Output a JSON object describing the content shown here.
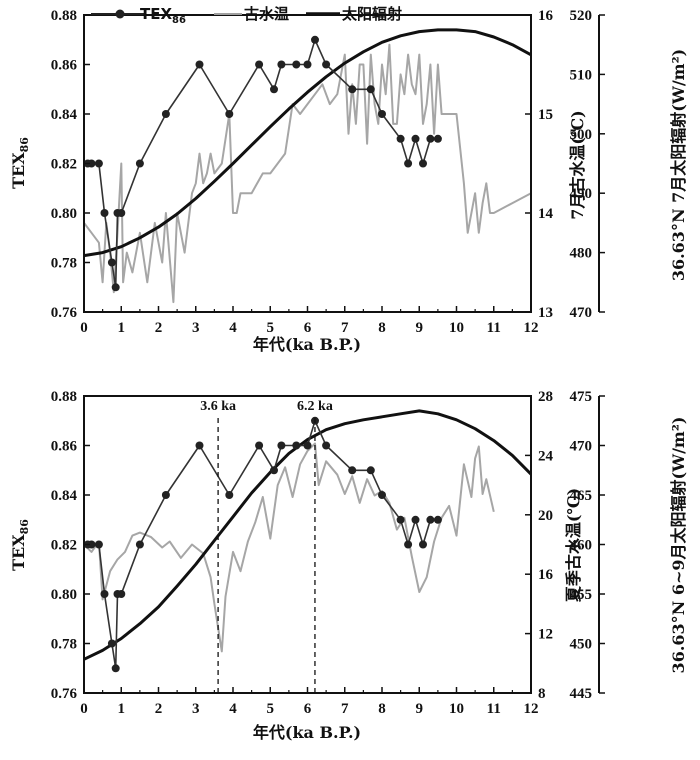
{
  "legend": {
    "tex86": "TEX",
    "tex86_sub": "86",
    "paleo_temp": "古水温",
    "solar": "太阳辐射"
  },
  "chart_data": [
    {
      "type": "line",
      "panel": "top",
      "xlabel": "年代(ka B.P.)",
      "ylabel_left": "TEX",
      "ylabel_left_sub": "86",
      "ylabel_right1": "7月古水温(℃)",
      "ylabel_right2": "36.63°N 7月太阳辐射(W/m²)",
      "xlim": [
        0,
        12
      ],
      "xticks": [
        "0",
        "1",
        "2",
        "3",
        "4",
        "5",
        "6",
        "7",
        "8",
        "9",
        "10",
        "11",
        "12"
      ],
      "ylim_left": [
        0.76,
        0.88
      ],
      "yticks_left": [
        "0.76",
        "0.78",
        "0.80",
        "0.82",
        "0.84",
        "0.86",
        "0.88"
      ],
      "ylim_right1": [
        13,
        16
      ],
      "yticks_right1": [
        "13",
        "14",
        "15",
        "16"
      ],
      "ylim_right2": [
        470,
        520
      ],
      "yticks_right2": [
        "470",
        "480",
        "490",
        "500",
        "510",
        "520"
      ],
      "series": [
        {
          "name": "TEX86",
          "axis": "left",
          "x": [
            0.1,
            0.2,
            0.4,
            0.55,
            0.75,
            0.85,
            0.9,
            1.0,
            1.5,
            2.2,
            3.1,
            3.9,
            4.7,
            5.1,
            5.3,
            5.7,
            6.0,
            6.2,
            6.5,
            7.2,
            7.7,
            8.0,
            8.5,
            8.7,
            8.9,
            9.1,
            9.3,
            9.5
          ],
          "values": [
            0.82,
            0.82,
            0.82,
            0.8,
            0.78,
            0.77,
            0.8,
            0.8,
            0.82,
            0.84,
            0.86,
            0.84,
            0.86,
            0.85,
            0.86,
            0.86,
            0.86,
            0.87,
            0.86,
            0.85,
            0.85,
            0.84,
            0.83,
            0.82,
            0.83,
            0.82,
            0.83,
            0.83
          ]
        },
        {
          "name": "古水温",
          "axis": "right1",
          "x": [
            0.0,
            0.2,
            0.4,
            0.5,
            0.6,
            0.7,
            0.8,
            0.9,
            1.0,
            1.05,
            1.15,
            1.3,
            1.5,
            1.7,
            1.9,
            2.1,
            2.2,
            2.4,
            2.5,
            2.7,
            2.9,
            3.0,
            3.1,
            3.2,
            3.3,
            3.4,
            3.5,
            3.7,
            3.9,
            4.0,
            4.1,
            4.2,
            4.5,
            4.8,
            5.0,
            5.2,
            5.4,
            5.6,
            5.8,
            6.0,
            6.2,
            6.4,
            6.6,
            6.8,
            7.0,
            7.1,
            7.2,
            7.3,
            7.4,
            7.5,
            7.6,
            7.7,
            7.8,
            7.9,
            8.0,
            8.1,
            8.2,
            8.3,
            8.4,
            8.5,
            8.6,
            8.7,
            8.8,
            8.9,
            9.0,
            9.1,
            9.2,
            9.3,
            9.4,
            9.5,
            9.6,
            10.0,
            10.2,
            10.3,
            10.5,
            10.6,
            10.7,
            10.8,
            10.9,
            11.0,
            11.5,
            12.0
          ],
          "values": [
            13.9,
            13.8,
            13.7,
            13.3,
            13.9,
            13.6,
            13.2,
            13.8,
            14.5,
            13.3,
            13.6,
            13.4,
            13.8,
            13.3,
            13.9,
            13.5,
            14.0,
            13.1,
            14.0,
            13.6,
            14.2,
            14.3,
            14.6,
            14.3,
            14.4,
            14.6,
            14.4,
            14.5,
            15.0,
            14.0,
            14.0,
            14.2,
            14.2,
            14.4,
            14.4,
            14.5,
            14.6,
            15.1,
            15.0,
            15.1,
            15.2,
            15.3,
            15.1,
            15.2,
            15.6,
            14.8,
            15.3,
            14.9,
            15.5,
            15.5,
            14.7,
            15.6,
            15.1,
            14.9,
            15.5,
            15.2,
            15.7,
            14.9,
            14.9,
            15.4,
            15.2,
            15.6,
            15.3,
            15.2,
            15.6,
            14.9,
            15.1,
            15.5,
            14.8,
            15.5,
            15.0,
            15.0,
            14.3,
            13.8,
            14.2,
            13.8,
            14.1,
            14.3,
            14.0,
            14.0,
            14.1,
            14.2
          ]
        },
        {
          "name": "太阳辐射",
          "axis": "right2",
          "x": [
            0,
            0.5,
            1,
            1.5,
            2,
            2.5,
            3,
            3.5,
            4,
            4.5,
            5,
            5.5,
            6,
            6.5,
            7,
            7.5,
            8,
            8.5,
            9,
            9.5,
            10,
            10.5,
            11,
            11.5,
            12
          ],
          "values": [
            479.5,
            480.0,
            481.0,
            482.5,
            484.3,
            486.5,
            489.1,
            492.0,
            495.0,
            498.1,
            501.2,
            504.2,
            507.0,
            509.6,
            511.9,
            513.8,
            515.4,
            516.5,
            517.2,
            517.5,
            517.5,
            517.2,
            516.3,
            515.0,
            513.3
          ]
        }
      ]
    },
    {
      "type": "line",
      "panel": "bottom",
      "xlabel": "年代(ka B.P.)",
      "ylabel_left": "TEX",
      "ylabel_left_sub": "86",
      "ylabel_right1": "夏季古水温(℃)",
      "ylabel_right2": "36.63°N 6~9月太阳辐射(W/m²)",
      "xlim": [
        0,
        12
      ],
      "xticks": [
        "0",
        "1",
        "2",
        "3",
        "4",
        "5",
        "6",
        "7",
        "8",
        "9",
        "10",
        "11",
        "12"
      ],
      "ylim_left": [
        0.76,
        0.88
      ],
      "yticks_left": [
        "0.76",
        "0.78",
        "0.80",
        "0.82",
        "0.84",
        "0.86",
        "0.88"
      ],
      "ylim_right1": [
        8,
        28
      ],
      "yticks_right1": [
        "8",
        "12",
        "16",
        "20",
        "24",
        "28"
      ],
      "ylim_right2": [
        445,
        475
      ],
      "yticks_right2": [
        "445",
        "450",
        "455",
        "460",
        "465",
        "470",
        "475"
      ],
      "annotations": [
        {
          "x": 3.6,
          "label": "3.6 ka"
        },
        {
          "x": 6.2,
          "label": "6.2 ka"
        }
      ],
      "series": [
        {
          "name": "TEX86",
          "axis": "left",
          "x": [
            0.1,
            0.2,
            0.4,
            0.55,
            0.75,
            0.85,
            0.9,
            1.0,
            1.5,
            2.2,
            3.1,
            3.9,
            4.7,
            5.1,
            5.3,
            5.7,
            6.0,
            6.2,
            6.5,
            7.2,
            7.7,
            8.0,
            8.5,
            8.7,
            8.9,
            9.1,
            9.3,
            9.5
          ],
          "values": [
            0.82,
            0.82,
            0.82,
            0.8,
            0.78,
            0.77,
            0.8,
            0.8,
            0.82,
            0.84,
            0.86,
            0.84,
            0.86,
            0.85,
            0.86,
            0.86,
            0.86,
            0.87,
            0.86,
            0.85,
            0.85,
            0.84,
            0.83,
            0.82,
            0.83,
            0.82,
            0.83,
            0.83
          ]
        },
        {
          "name": "夏季古水温",
          "axis": "right1",
          "x": [
            0.0,
            0.2,
            0.4,
            0.5,
            0.7,
            0.9,
            1.1,
            1.3,
            1.5,
            1.8,
            2.1,
            2.3,
            2.6,
            2.9,
            3.2,
            3.4,
            3.5,
            3.6,
            3.7,
            3.8,
            4.0,
            4.2,
            4.4,
            4.6,
            4.8,
            5.0,
            5.2,
            5.4,
            5.6,
            5.8,
            6.0,
            6.2,
            6.3,
            6.5,
            6.8,
            7.0,
            7.2,
            7.4,
            7.6,
            7.8,
            8.0,
            8.2,
            8.4,
            8.6,
            8.8,
            9.0,
            9.2,
            9.4,
            9.6,
            9.8,
            10.0,
            10.2,
            10.4,
            10.5,
            10.6,
            10.7,
            10.8,
            11.0
          ],
          "values": [
            18.0,
            17.5,
            18.2,
            14.3,
            16.2,
            17.0,
            17.5,
            18.6,
            18.8,
            18.5,
            17.8,
            18.2,
            17.1,
            18.0,
            17.4,
            15.8,
            14.0,
            12.4,
            10.8,
            14.5,
            17.5,
            16.2,
            18.2,
            19.5,
            21.2,
            18.4,
            22.0,
            23.2,
            21.2,
            23.4,
            24.3,
            24.8,
            22.0,
            23.6,
            22.7,
            21.4,
            22.6,
            20.8,
            22.4,
            21.3,
            21.6,
            20.8,
            19.0,
            19.8,
            17.2,
            14.8,
            15.8,
            18.2,
            19.8,
            20.6,
            18.6,
            23.4,
            21.2,
            23.8,
            24.6,
            21.4,
            22.4,
            20.2
          ]
        },
        {
          "name": "太阳辐射",
          "axis": "right2",
          "x": [
            0,
            0.5,
            1,
            1.5,
            2,
            2.5,
            3,
            3.5,
            4,
            4.5,
            5,
            5.5,
            6,
            6.5,
            7,
            7.5,
            8,
            8.5,
            9,
            9.5,
            10,
            10.5,
            11,
            11.5,
            12
          ],
          "values": [
            448.4,
            449.3,
            450.5,
            452.0,
            453.7,
            455.8,
            458.0,
            460.4,
            462.8,
            465.2,
            467.3,
            469.2,
            470.6,
            471.6,
            472.2,
            472.6,
            472.9,
            473.2,
            473.5,
            473.2,
            472.6,
            471.7,
            470.5,
            469.0,
            467.1
          ]
        }
      ]
    }
  ]
}
